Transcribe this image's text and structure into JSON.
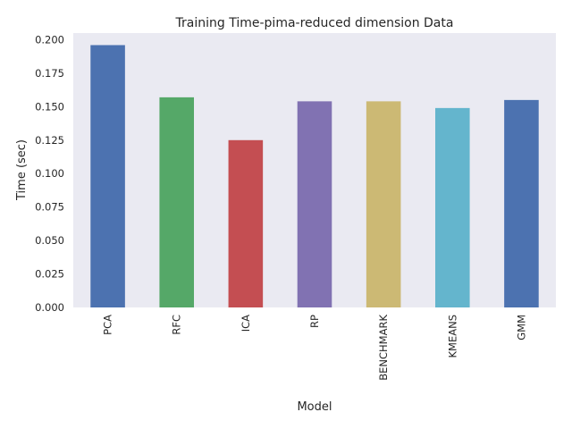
{
  "chart_data": {
    "type": "bar",
    "title": "Training Time-pima-reduced dimension Data",
    "xlabel": "Model",
    "ylabel": "Time (sec)",
    "categories": [
      "PCA",
      "RFC",
      "ICA",
      "RP",
      "BENCHMARK",
      "KMEANS",
      "GMM"
    ],
    "values": [
      0.196,
      0.157,
      0.125,
      0.154,
      0.154,
      0.149,
      0.155
    ],
    "ylim": [
      0,
      0.205
    ],
    "yticks": [
      "0.000",
      "0.025",
      "0.050",
      "0.075",
      "0.100",
      "0.125",
      "0.150",
      "0.175",
      "0.200"
    ],
    "grid": false,
    "colors": [
      "#4c72b0",
      "#55a868",
      "#c44e52",
      "#8172b2",
      "#ccb974",
      "#64b5cd",
      "#4c72b0"
    ],
    "background": "#eaeaf2"
  }
}
